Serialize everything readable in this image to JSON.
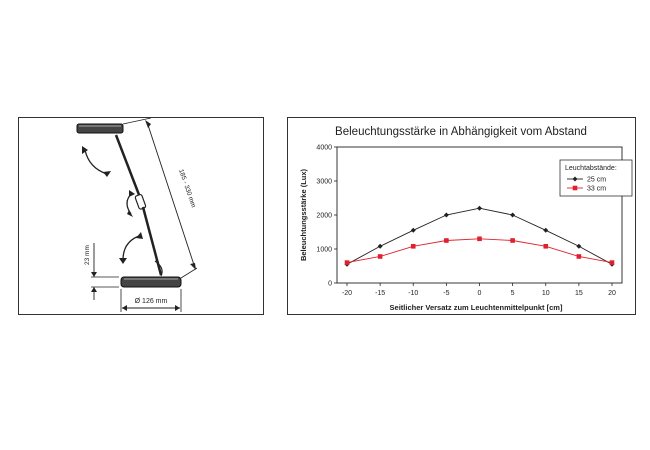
{
  "lamp": {
    "height_label": "23 mm",
    "diameter_label": "Ø 126 mm",
    "arm_label": "185 - 330 mm"
  },
  "chart_data": {
    "type": "line",
    "title": "Beleuchtungsstärke in Abhängigkeit vom Abstand",
    "xlabel": "Seitlicher Versatz zum Leuchtenmittelpunkt [cm]",
    "ylabel": "Beleuchtungsstärke (Lux)",
    "x": [
      -20,
      -15,
      -10,
      -5,
      0,
      5,
      10,
      15,
      20
    ],
    "xlim": [
      -20,
      20
    ],
    "ylim": [
      0,
      4000
    ],
    "yticks": [
      0,
      1000,
      2000,
      3000,
      4000
    ],
    "grid": "horizontal",
    "legend": {
      "title": "Leuchtabstände:",
      "position": "top-right"
    },
    "series": [
      {
        "name": "25 cm",
        "color": "#222222",
        "marker": "diamond",
        "values": [
          550,
          1080,
          1550,
          2000,
          2200,
          2000,
          1550,
          1080,
          550
        ]
      },
      {
        "name": "33 cm",
        "color": "#e0202e",
        "marker": "square",
        "values": [
          600,
          780,
          1080,
          1250,
          1300,
          1250,
          1080,
          780,
          600
        ]
      }
    ]
  }
}
